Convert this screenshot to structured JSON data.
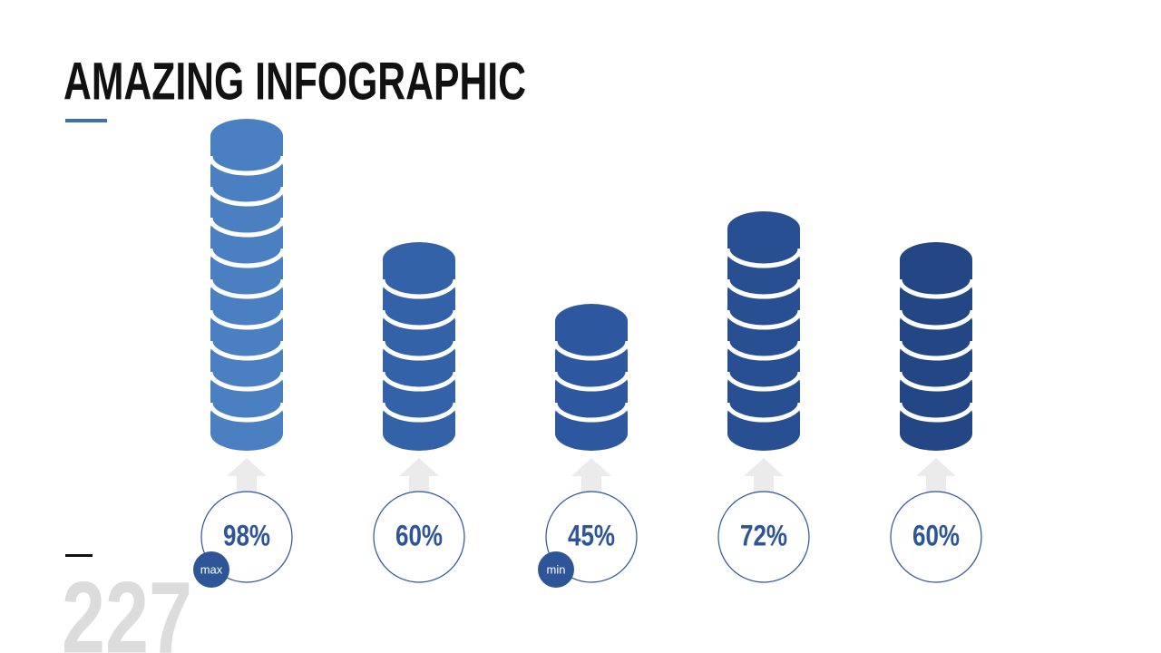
{
  "chart_data": {
    "type": "bar",
    "title": "AMAZING INFOGRAPHIC",
    "categories": [
      null,
      null,
      null,
      null,
      null
    ],
    "values": [
      98,
      60,
      45,
      72,
      60
    ],
    "value_labels": [
      "98%",
      "60%",
      "45%",
      "72%",
      "60%"
    ],
    "colors": [
      "#4a7fc1",
      "#3462a8",
      "#2d589f",
      "#284f92",
      "#234684"
    ],
    "annotations": [
      "max",
      "min"
    ],
    "page_number": "227"
  }
}
